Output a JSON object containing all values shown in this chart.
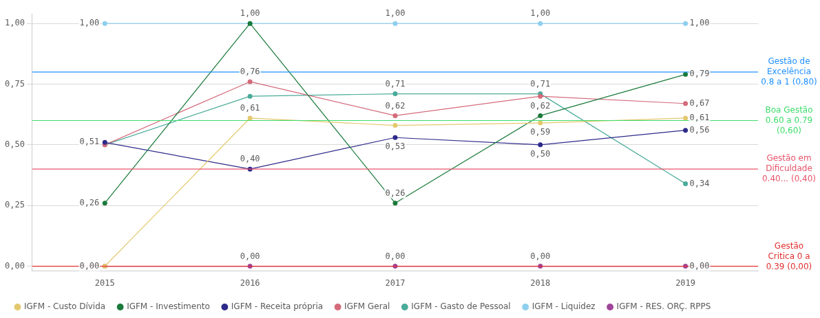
{
  "chart_data": {
    "type": "line",
    "categories": [
      "2015",
      "2016",
      "2017",
      "2018",
      "2019"
    ],
    "series": [
      {
        "name": "IGFM - Custo Dívida",
        "color": "#e3c96e",
        "values": [
          0.0,
          0.61,
          0.58,
          0.59,
          0.61
        ],
        "value_labels": [
          null,
          "0,61",
          null,
          "0,59",
          "0,61"
        ]
      },
      {
        "name": "IGFM - Investimento",
        "color": "#1a7a3a",
        "values": [
          0.26,
          1.0,
          0.26,
          0.62,
          0.79
        ],
        "value_labels": [
          "0,26",
          null,
          "0,26",
          "0,62",
          "0,79"
        ]
      },
      {
        "name": "IGFM - Receita própria",
        "color": "#2e2a8a",
        "values": [
          0.51,
          0.4,
          0.53,
          0.5,
          0.56
        ],
        "value_labels": [
          "0,51",
          "0,40",
          "0,53",
          "0,50",
          "0,56"
        ]
      },
      {
        "name": "IGFM Geral",
        "color": "#d46a7a",
        "values": [
          0.5,
          0.76,
          0.62,
          0.7,
          0.67
        ],
        "value_labels": [
          null,
          "0,76",
          "0,62",
          null,
          "0,67"
        ]
      },
      {
        "name": "IGFM - Gasto de Pessoal",
        "color": "#4aab9a",
        "values": [
          0.5,
          0.7,
          0.71,
          0.71,
          0.34
        ],
        "value_labels": [
          null,
          null,
          "0,71",
          "0,71",
          "0,34"
        ]
      },
      {
        "name": "IGFM - Liquidez",
        "color": "#8fcfee",
        "values": [
          1.0,
          1.0,
          1.0,
          1.0,
          1.0
        ],
        "value_labels": [
          "1,00",
          "1,00",
          "1,00",
          "1,00",
          "1,00"
        ]
      },
      {
        "name": "IGFM - RES. ORÇ. RPPS",
        "color": "#a0449a",
        "values": [
          0.0,
          0.0,
          0.0,
          0.0,
          0.0
        ],
        "value_labels": [
          "0,00",
          "0,00",
          "0,00",
          "0,00",
          "0,00"
        ]
      }
    ],
    "ylim": [
      -0.02,
      1.04
    ],
    "yticks": [
      {
        "value": 0,
        "label": "0,00"
      },
      {
        "value": 0.25,
        "label": "0,25"
      },
      {
        "value": 0.5,
        "label": "0,50"
      },
      {
        "value": 0.75,
        "label": "0,75"
      },
      {
        "value": 1,
        "label": "1,00"
      }
    ],
    "ref_lines": [
      {
        "axis": "y",
        "value": 0.8,
        "label": "Gestão de Excelência 0.8 a 1 (0,80)",
        "color": "#1e90ff"
      },
      {
        "axis": "y",
        "value": 0.6,
        "label": "Boa Gestão 0.60 a 0.79 (0,60)",
        "color": "#3ddc6a"
      },
      {
        "axis": "y",
        "value": 0.4,
        "label": "Gestão em Dificuldade 0.40... (0,40)",
        "color": "#e8536a"
      },
      {
        "axis": "y",
        "value": 0,
        "label": "Gestão Critica 0 a 0.39 (0,00)",
        "color": "#e03030"
      }
    ],
    "grid": "y",
    "legend": "bottom",
    "marker": "circle",
    "line_style": "solid"
  }
}
